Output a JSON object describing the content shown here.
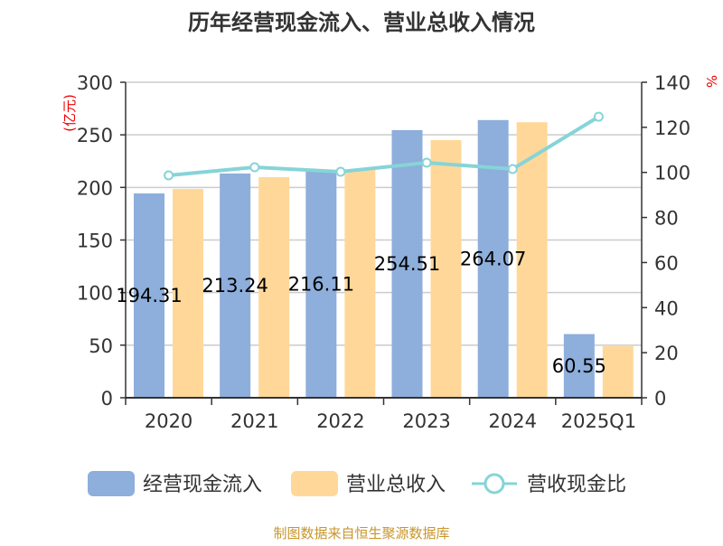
{
  "chart_data": {
    "type": "bar",
    "title": "历年经营现金流入、营业总收入情况",
    "categories": [
      "2020",
      "2021",
      "2022",
      "2023",
      "2024",
      "2025Q1"
    ],
    "series": [
      {
        "name": "经营现金流入",
        "type": "bar",
        "axis": "left",
        "color": "#8eaedb",
        "values": [
          194.31,
          213.24,
          216.11,
          254.51,
          264.07,
          60.55
        ],
        "labels": [
          "194.31",
          "213.24",
          "216.11",
          "254.51",
          "264.07",
          "60.55"
        ]
      },
      {
        "name": "营业总收入",
        "type": "bar",
        "axis": "left",
        "color": "#ffd899",
        "values": [
          198.6,
          209.8,
          216.7,
          245.0,
          262.0,
          49.0
        ]
      },
      {
        "name": "营收现金比",
        "type": "line",
        "axis": "right",
        "color": "#86d4d8",
        "values": [
          98.7,
          102.3,
          100.3,
          104.3,
          101.5,
          124.7
        ]
      }
    ],
    "ylabel": "(亿元)",
    "ylim": [
      0,
      300
    ],
    "yticks": [
      0,
      50,
      100,
      150,
      200,
      250,
      300
    ],
    "y2label": "%",
    "y2lim": [
      0,
      140
    ],
    "y2ticks": [
      0,
      20,
      40,
      60,
      80,
      100,
      120,
      140
    ],
    "grid": true,
    "legend": "bottom",
    "source": "制图数据来自恒生聚源数据库"
  }
}
